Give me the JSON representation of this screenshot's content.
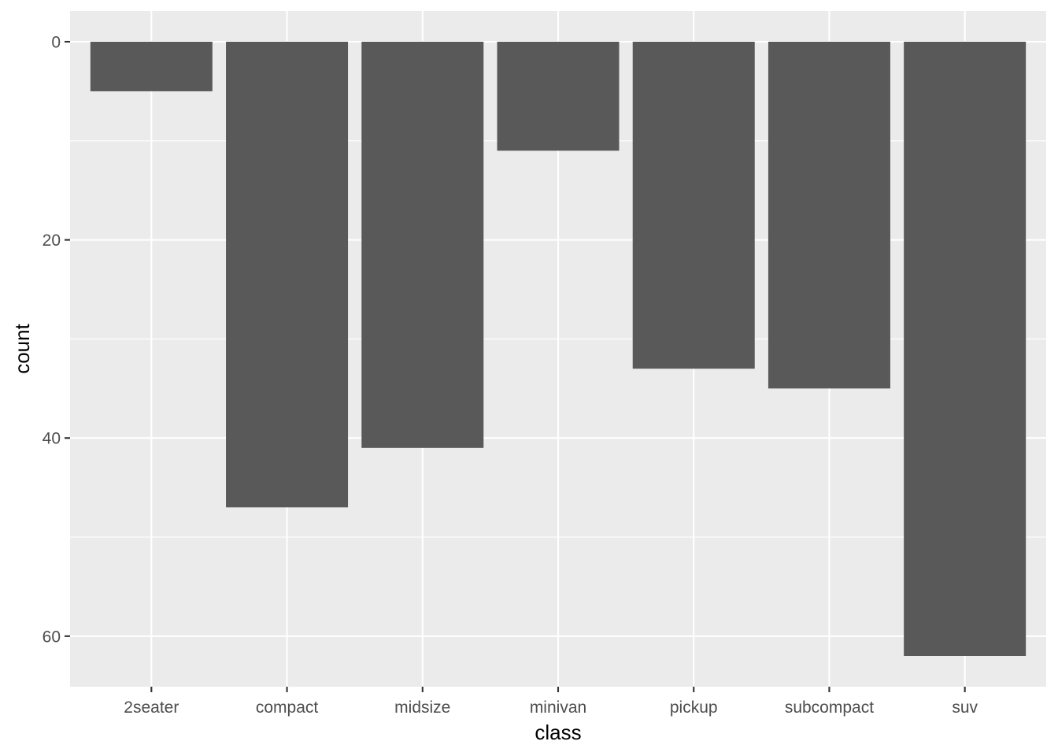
{
  "chart_data": {
    "type": "bar",
    "categories": [
      "2seater",
      "compact",
      "midsize",
      "minivan",
      "pickup",
      "subcompact",
      "suv"
    ],
    "values": [
      5,
      47,
      41,
      11,
      33,
      35,
      62
    ],
    "xlabel": "class",
    "ylabel": "count",
    "y_reversed": true,
    "ylim": [
      -3.1,
      65.1
    ],
    "y_ticks": [
      0,
      20,
      40,
      60
    ],
    "y_tick_labels": [
      "0",
      "20",
      "40",
      "60"
    ],
    "y_minor_ticks": [
      10,
      30,
      50
    ],
    "grid": true,
    "colors": {
      "panel": "#EBEBEB",
      "bar": "#595959",
      "grid": "#FFFFFF",
      "tick_label": "#4D4D4D",
      "axis_title": "#000000"
    }
  }
}
